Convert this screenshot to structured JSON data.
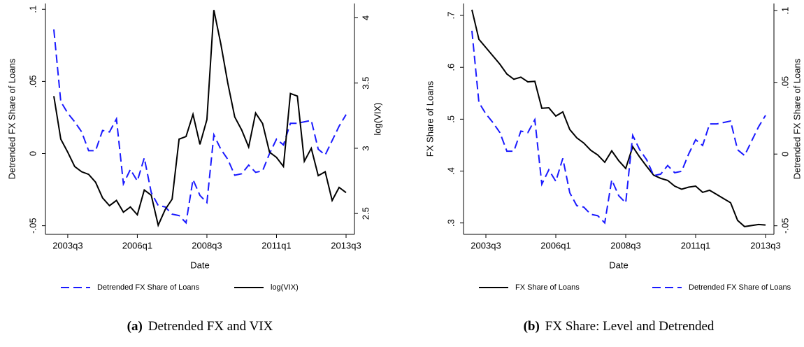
{
  "chart_data": [
    {
      "type": "line",
      "caption_label": "(a)",
      "caption": "Detrended FX and VIX",
      "xlabel": "Date",
      "ylabel": "Detrended FX Share of Loans",
      "y2label": "log(VIX)",
      "categories": [
        null,
        null,
        "2003q3",
        null,
        null,
        null,
        null,
        null,
        null,
        null,
        null,
        null,
        "2006q1",
        null,
        null,
        null,
        null,
        null,
        null,
        null,
        null,
        null,
        "2008q3",
        null,
        null,
        null,
        null,
        null,
        null,
        null,
        null,
        null,
        "2011q1",
        null,
        null,
        null,
        null,
        null,
        null,
        null,
        null,
        null,
        "2013q3"
      ],
      "ylim": [
        -0.056,
        0.104
      ],
      "yticks": [
        {
          "value": -0.05,
          "label": "-.05"
        },
        0,
        {
          "value": 0.05,
          "label": ".05"
        },
        {
          "value": 0.1,
          "label": ".1"
        }
      ],
      "y2lim": [
        2.34,
        4.11
      ],
      "y2ticks": [
        2.5,
        3,
        3.5,
        4
      ],
      "series": [
        {
          "name": "Detrended FX Share of Loans",
          "color": "#1a1aff",
          "line_style": "dashed",
          "axis": "y",
          "values": [
            0.086,
            0.036,
            0.028,
            0.022,
            0.015,
            0.002,
            0.002,
            0.016,
            0.015,
            0.024,
            -0.021,
            -0.011,
            -0.019,
            -0.003,
            -0.027,
            -0.036,
            -0.037,
            -0.042,
            -0.043,
            -0.048,
            -0.018,
            -0.029,
            -0.034,
            0.013,
            0.003,
            -0.004,
            -0.015,
            -0.014,
            -0.008,
            -0.013,
            -0.012,
            0.0,
            0.01,
            0.006,
            0.021,
            0.021,
            0.022,
            0.023,
            0.003,
            -0.001,
            0.009,
            0.019,
            0.027
          ]
        },
        {
          "name": "log(VIX)",
          "color": "#000000",
          "line_style": "solid",
          "axis": "y2",
          "values": [
            3.4,
            3.07,
            2.97,
            2.86,
            2.82,
            2.8,
            2.74,
            2.62,
            2.56,
            2.6,
            2.51,
            2.55,
            2.49,
            2.68,
            2.64,
            2.41,
            2.53,
            2.61,
            3.07,
            3.09,
            3.26,
            3.03,
            3.22,
            4.06,
            3.8,
            3.5,
            3.24,
            3.14,
            3.01,
            3.27,
            3.19,
            2.97,
            2.93,
            2.86,
            3.42,
            3.4,
            2.9,
            3.0,
            2.79,
            2.82,
            2.6,
            2.7,
            2.66
          ]
        }
      ]
    },
    {
      "type": "line",
      "caption_label": "(b)",
      "caption": "FX Share: Level and Detrended",
      "xlabel": "Date",
      "ylabel": "FX Share of Loans",
      "y2label": "Detrended FX Share of Loans",
      "categories": [
        null,
        null,
        "2003q3",
        null,
        null,
        null,
        null,
        null,
        null,
        null,
        null,
        null,
        "2006q1",
        null,
        null,
        null,
        null,
        null,
        null,
        null,
        null,
        null,
        "2008q3",
        null,
        null,
        null,
        null,
        null,
        null,
        null,
        null,
        null,
        "2011q1",
        null,
        null,
        null,
        null,
        null,
        null,
        null,
        null,
        null,
        "2013q3"
      ],
      "ylim": [
        0.278,
        0.723
      ],
      "yticks": [
        {
          "value": 0.3,
          "label": ".3"
        },
        {
          "value": 0.4,
          "label": ".4"
        },
        {
          "value": 0.5,
          "label": ".5"
        },
        {
          "value": 0.6,
          "label": ".6"
        },
        {
          "value": 0.7,
          "label": ".7"
        }
      ],
      "y2lim": [
        -0.056,
        0.105
      ],
      "y2ticks": [
        {
          "value": -0.05,
          "label": "-.05"
        },
        0,
        {
          "value": 0.05,
          "label": ".05"
        },
        {
          "value": 0.1,
          "label": ".1"
        }
      ],
      "series": [
        {
          "name": "FX Share of Loans",
          "color": "#000000",
          "line_style": "solid",
          "axis": "y",
          "values": [
            0.711,
            0.654,
            0.638,
            0.622,
            0.606,
            0.587,
            0.577,
            0.581,
            0.572,
            0.573,
            0.521,
            0.522,
            0.506,
            0.514,
            0.48,
            0.464,
            0.454,
            0.44,
            0.431,
            0.417,
            0.439,
            0.42,
            0.405,
            0.447,
            0.427,
            0.409,
            0.392,
            0.386,
            0.382,
            0.371,
            0.365,
            0.369,
            0.371,
            0.359,
            0.363,
            0.355,
            0.347,
            0.339,
            0.305,
            0.293,
            0.295,
            0.297,
            0.296
          ]
        },
        {
          "name": "Detrended FX Share of Loans",
          "color": "#1a1aff",
          "line_style": "dashed",
          "axis": "y2",
          "values": [
            0.086,
            0.036,
            0.028,
            0.022,
            0.015,
            0.002,
            0.002,
            0.016,
            0.015,
            0.024,
            -0.021,
            -0.011,
            -0.019,
            -0.003,
            -0.027,
            -0.036,
            -0.037,
            -0.042,
            -0.043,
            -0.048,
            -0.018,
            -0.029,
            -0.034,
            0.013,
            0.003,
            -0.004,
            -0.015,
            -0.014,
            -0.008,
            -0.013,
            -0.012,
            0.0,
            0.01,
            0.006,
            0.021,
            0.021,
            0.022,
            0.023,
            0.003,
            -0.001,
            0.009,
            0.019,
            0.027
          ]
        }
      ]
    }
  ]
}
